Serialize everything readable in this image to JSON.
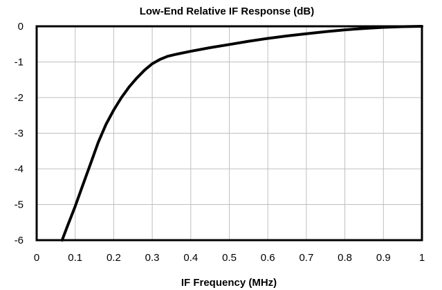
{
  "chart_data": {
    "type": "line",
    "title": "Low-End Relative IF Response (dB)",
    "xlabel": "IF Frequency (MHz)",
    "ylabel": "",
    "xlim": [
      0,
      1
    ],
    "ylim": [
      -6,
      0
    ],
    "x_ticks": [
      "0",
      "0.1",
      "0.2",
      "0.3",
      "0.4",
      "0.5",
      "0.6",
      "0.7",
      "0.8",
      "0.9",
      "1"
    ],
    "y_ticks": [
      "0",
      "-1",
      "-2",
      "-3",
      "-4",
      "-5",
      "-6"
    ],
    "grid": true,
    "legend": "none",
    "line_color": "#000000",
    "series": [
      {
        "x": [
          0.066,
          0.08,
          0.1,
          0.12,
          0.14,
          0.16,
          0.18,
          0.2,
          0.22,
          0.24,
          0.26,
          0.28,
          0.3,
          0.32,
          0.34,
          0.36,
          0.4,
          0.45,
          0.5,
          0.55,
          0.6,
          0.65,
          0.7,
          0.75,
          0.8,
          0.85,
          0.9,
          0.95,
          1.0
        ],
        "y": [
          -6.0,
          -5.6,
          -5.05,
          -4.45,
          -3.85,
          -3.25,
          -2.75,
          -2.35,
          -2.0,
          -1.7,
          -1.45,
          -1.23,
          -1.05,
          -0.93,
          -0.84,
          -0.79,
          -0.7,
          -0.6,
          -0.51,
          -0.42,
          -0.34,
          -0.27,
          -0.21,
          -0.15,
          -0.1,
          -0.06,
          -0.03,
          -0.01,
          0.0
        ]
      }
    ]
  }
}
